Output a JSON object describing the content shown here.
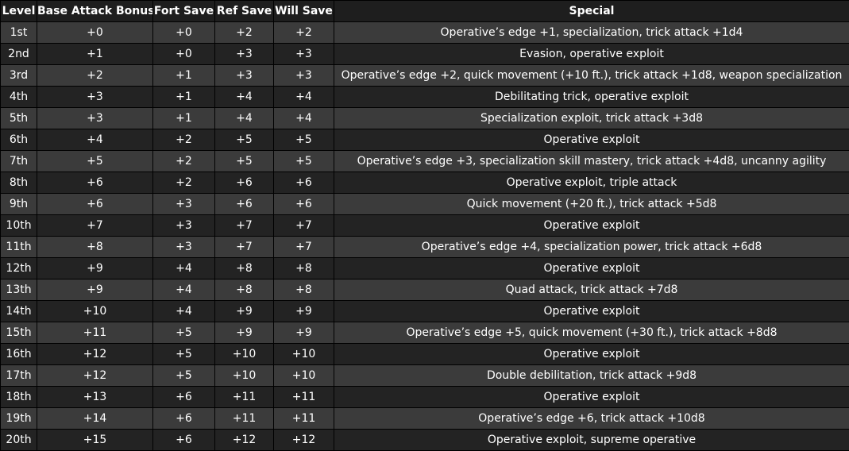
{
  "table": {
    "headers": [
      "Level",
      "Base Attack Bonus",
      "Fort Save",
      "Ref Save",
      "Will Save",
      "Special"
    ],
    "rows": [
      [
        "1st",
        "+0",
        "+0",
        "+2",
        "+2",
        "Operative’s edge +1, specialization, trick attack +1d4"
      ],
      [
        "2nd",
        "+1",
        "+0",
        "+3",
        "+3",
        "Evasion, operative exploit"
      ],
      [
        "3rd",
        "+2",
        "+1",
        "+3",
        "+3",
        "Operative’s edge +2, quick movement (+10 ft.), trick attack +1d8, weapon specialization"
      ],
      [
        "4th",
        "+3",
        "+1",
        "+4",
        "+4",
        "Debilitating trick, operative exploit"
      ],
      [
        "5th",
        "+3",
        "+1",
        "+4",
        "+4",
        "Specialization exploit, trick attack +3d8"
      ],
      [
        "6th",
        "+4",
        "+2",
        "+5",
        "+5",
        "Operative exploit"
      ],
      [
        "7th",
        "+5",
        "+2",
        "+5",
        "+5",
        "Operative’s edge +3, specialization skill mastery, trick attack +4d8, uncanny agility"
      ],
      [
        "8th",
        "+6",
        "+2",
        "+6",
        "+6",
        "Operative exploit, triple attack"
      ],
      [
        "9th",
        "+6",
        "+3",
        "+6",
        "+6",
        "Quick movement (+20 ft.), trick attack +5d8"
      ],
      [
        "10th",
        "+7",
        "+3",
        "+7",
        "+7",
        "Operative exploit"
      ],
      [
        "11th",
        "+8",
        "+3",
        "+7",
        "+7",
        "Operative’s edge +4, specialization power, trick attack +6d8"
      ],
      [
        "12th",
        "+9",
        "+4",
        "+8",
        "+8",
        "Operative exploit"
      ],
      [
        "13th",
        "+9",
        "+4",
        "+8",
        "+8",
        "Quad attack, trick attack +7d8"
      ],
      [
        "14th",
        "+10",
        "+4",
        "+9",
        "+9",
        "Operative exploit"
      ],
      [
        "15th",
        "+11",
        "+5",
        "+9",
        "+9",
        "Operative’s edge +5, quick movement (+30 ft.), trick attack +8d8"
      ],
      [
        "16th",
        "+12",
        "+5",
        "+10",
        "+10",
        "Operative exploit"
      ],
      [
        "17th",
        "+12",
        "+5",
        "+10",
        "+10",
        "Double debilitation, trick attack +9d8"
      ],
      [
        "18th",
        "+13",
        "+6",
        "+11",
        "+11",
        "Operative exploit"
      ],
      [
        "19th",
        "+14",
        "+6",
        "+11",
        "+11",
        "Operative’s edge +6, trick attack +10d8"
      ],
      [
        "20th",
        "+15",
        "+6",
        "+12",
        "+12",
        "Operative exploit, supreme operative"
      ]
    ]
  }
}
